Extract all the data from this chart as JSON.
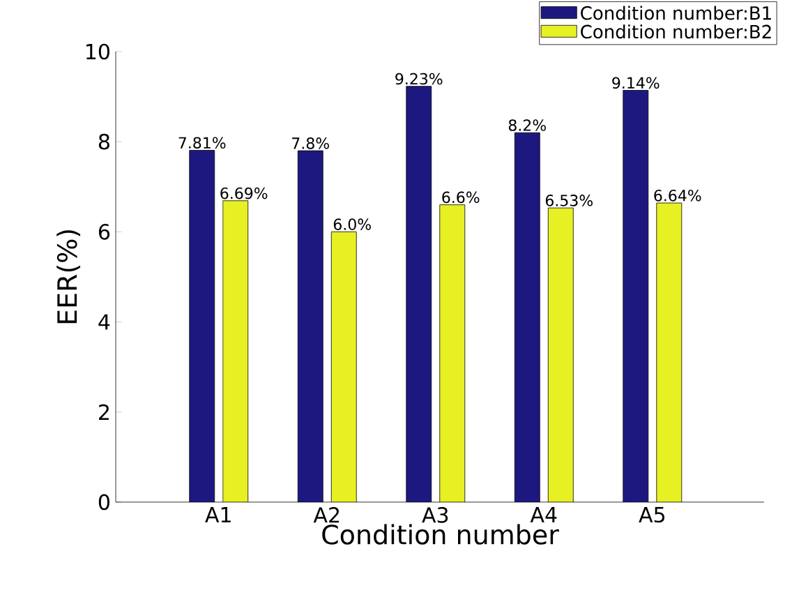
{
  "chart_data": {
    "type": "bar",
    "xlabel": "Condition number",
    "ylabel": "EER(%)",
    "categories": [
      "A1",
      "A2",
      "A3",
      "A4",
      "A5"
    ],
    "series": [
      {
        "name": "Condition number:B1",
        "color": "#1d1880",
        "values": [
          7.81,
          7.8,
          9.23,
          8.2,
          9.14
        ],
        "value_labels": [
          "7.81%",
          "7.8%",
          "9.23%",
          "8.2%",
          "9.14%"
        ]
      },
      {
        "name": "Condition number:B2",
        "color": "#e6f022",
        "values": [
          6.69,
          6.0,
          6.6,
          6.53,
          6.64
        ],
        "value_labels": [
          "6.69%",
          "6.0%",
          "6.6%",
          "6.53%",
          "6.64%"
        ]
      }
    ],
    "ylim": [
      0,
      10
    ],
    "yticks": [
      0,
      2,
      4,
      6,
      8,
      10
    ],
    "legend": "top right",
    "grid": false
  }
}
